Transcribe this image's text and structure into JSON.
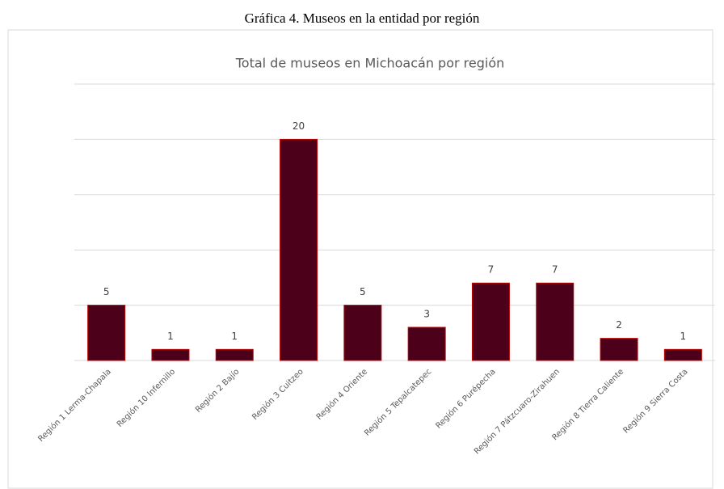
{
  "caption": "Gráfica 4. Museos en la entidad por región",
  "chart_data": {
    "type": "bar",
    "title": "Total de museos en Michoacán por región",
    "categories": [
      "Región 1 Lerma-Chapala",
      "Región 10 Infernillo",
      "Región 2 Bajío",
      "Región 3 Cuitzeo",
      "Región 4 Oriente",
      "Región 5 Tepalcatepec",
      "Región 6 Purépecha",
      "Región 7 Pátzcuaro-Zirahuen",
      "Región 8 Tierra Caliente",
      "Región 9 Sierra Costa"
    ],
    "values": [
      5,
      1,
      1,
      20,
      5,
      3,
      7,
      7,
      2,
      1
    ],
    "color": "#4d0019",
    "edge_color": "#c00000",
    "ylim": [
      0,
      25
    ],
    "yticks": [
      0,
      5,
      10,
      15,
      20,
      25
    ],
    "grid": true
  }
}
